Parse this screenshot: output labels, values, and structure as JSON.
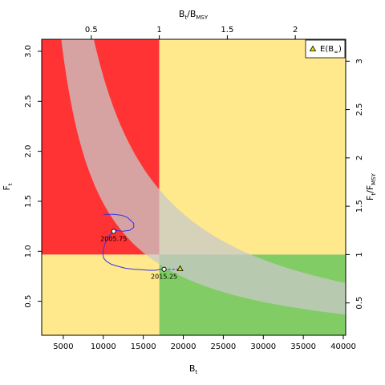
{
  "chart_data": {
    "type": "line",
    "title": "",
    "xlabel": {
      "main": "B",
      "sub": "t"
    },
    "ylabel": {
      "main": "F",
      "sub": "t"
    },
    "x2label": {
      "num_main": "B",
      "num_sub": "t",
      "sep": "/",
      "den_main": "B",
      "den_sub": "MSY"
    },
    "y2label": {
      "num_main": "F",
      "num_sub": "t",
      "sep": "/",
      "den_main": "F",
      "den_sub": "MSY"
    },
    "xlim": [
      2300,
      40300
    ],
    "ylim": [
      0.16,
      3.12
    ],
    "bmsy": 17000,
    "fmsy": 0.967,
    "x_ticks": [
      {
        "v": 5000,
        "label": "5000"
      },
      {
        "v": 10000,
        "label": "10000"
      },
      {
        "v": 15000,
        "label": "15000"
      },
      {
        "v": 20000,
        "label": "20000"
      },
      {
        "v": 25000,
        "label": "25000"
      },
      {
        "v": 30000,
        "label": "30000"
      },
      {
        "v": 35000,
        "label": "35000"
      },
      {
        "v": 40000,
        "label": "40000"
      }
    ],
    "y_ticks": [
      {
        "v": 0.5,
        "label": "0.5"
      },
      {
        "v": 1.0,
        "label": "1.0"
      },
      {
        "v": 1.5,
        "label": "1.5"
      },
      {
        "v": 2.0,
        "label": "2.0"
      },
      {
        "v": 2.5,
        "label": "2.5"
      },
      {
        "v": 3.0,
        "label": "3.0"
      }
    ],
    "x2_ticks": [
      {
        "v": 0.5,
        "label": "0.5"
      },
      {
        "v": 1.0,
        "label": "1"
      },
      {
        "v": 1.5,
        "label": "1.5"
      },
      {
        "v": 2.0,
        "label": "2"
      }
    ],
    "y2_ticks": [
      {
        "v": 0.5,
        "label": "0.5"
      },
      {
        "v": 1.0,
        "label": "1"
      },
      {
        "v": 1.5,
        "label": "1.5"
      },
      {
        "v": 2.0,
        "label": "2"
      },
      {
        "v": 2.5,
        "label": "2.5"
      },
      {
        "v": 3.0,
        "label": "3"
      }
    ],
    "zones": [
      {
        "name": "overfished-overfishing",
        "color": "#ff3333"
      },
      {
        "name": "top-right",
        "color": "#ffe98c"
      },
      {
        "name": "bottom-left",
        "color": "#ffe98c"
      },
      {
        "name": "healthy",
        "color": "#82cc66"
      }
    ],
    "msy_band": {
      "color": "#c8c8c8",
      "opacity": 0.75,
      "lower_c": 14800,
      "upper_c": 27500,
      "x_start": 3300
    },
    "trajectory": {
      "color": "#3333ee",
      "x": [
        10000,
        10500,
        11300,
        12300,
        13000,
        13400,
        13800,
        13800,
        13300,
        12400,
        11600,
        11300,
        11300,
        10800,
        10300,
        10000,
        9950,
        10050,
        10400,
        11000,
        11800,
        12800,
        13900,
        14800,
        15700,
        16500,
        17200,
        17600,
        18200,
        19000,
        19600
      ],
      "y": [
        1.37,
        1.37,
        1.37,
        1.36,
        1.34,
        1.31,
        1.28,
        1.24,
        1.21,
        1.2,
        1.21,
        1.2,
        1.2,
        1.16,
        1.1,
        1.02,
        0.97,
        0.93,
        0.9,
        0.87,
        0.85,
        0.83,
        0.82,
        0.815,
        0.81,
        0.81,
        0.82,
        0.82,
        0.82,
        0.82,
        0.82
      ],
      "dashed_from_index": 27
    },
    "points": [
      {
        "label": "2005.75",
        "x": 11300,
        "y": 1.2
      },
      {
        "label": "2015.25",
        "x": 17600,
        "y": 0.82
      }
    ],
    "expected_point": {
      "x": 19600,
      "y": 0.825
    },
    "legend": {
      "position": "top-right",
      "entry_main": "E(B",
      "entry_sub": "∞",
      "entry_close": ")"
    }
  }
}
